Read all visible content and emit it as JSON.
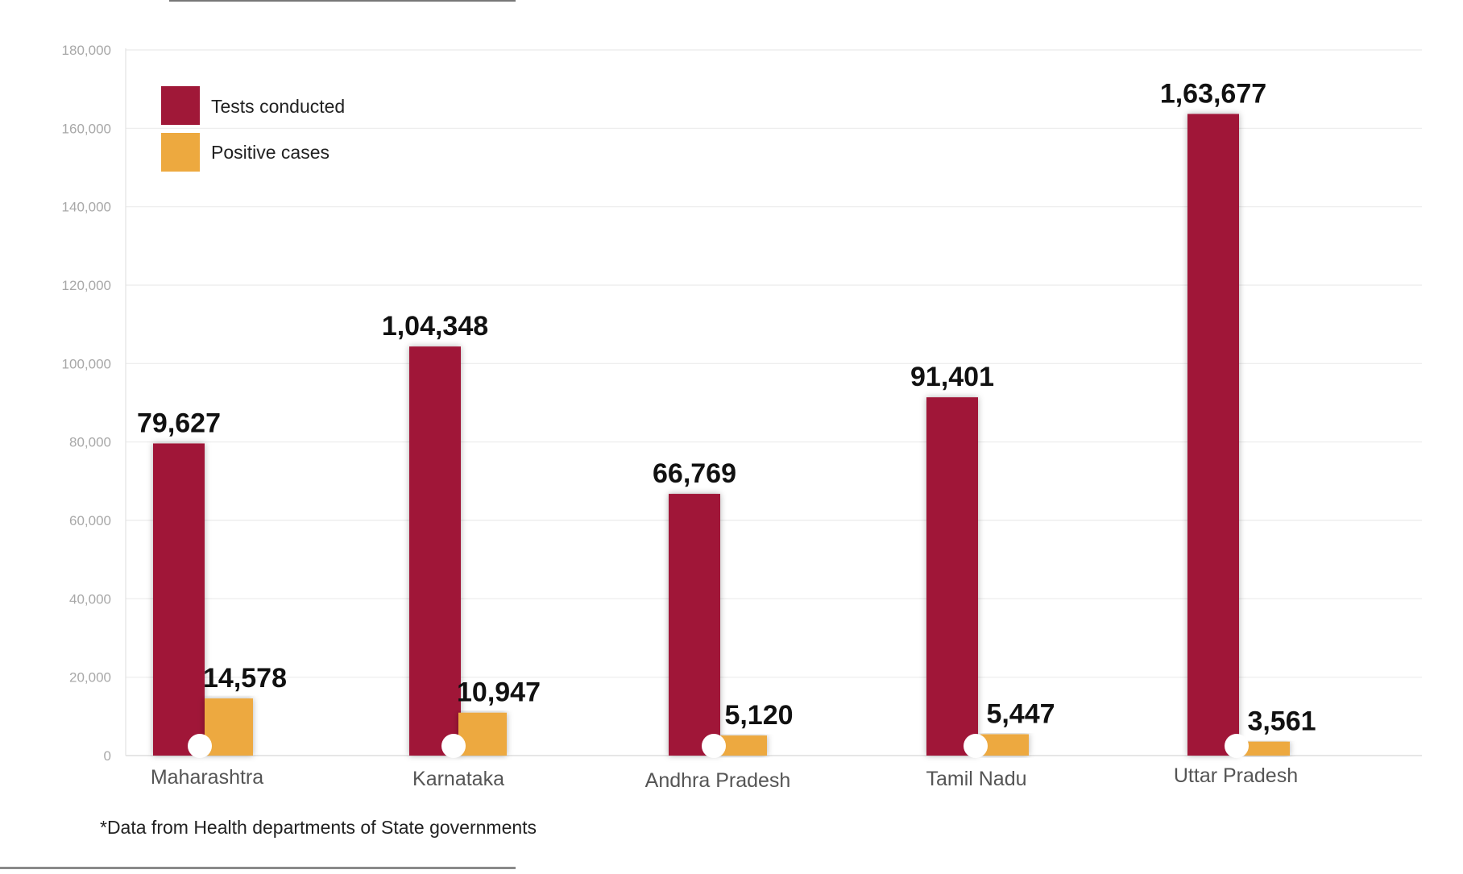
{
  "chart_data": {
    "type": "bar",
    "categories": [
      "Maharashtra",
      "Karnataka",
      "Andhra Pradesh",
      "Tamil Nadu",
      "Uttar Pradesh"
    ],
    "series": [
      {
        "name": "Tests conducted",
        "values": [
          79627,
          104348,
          66769,
          91401,
          163677
        ],
        "labels": [
          "79,627",
          "1,04,348",
          "66,769",
          "91,401",
          "1,63,677"
        ],
        "color": "#a01838"
      },
      {
        "name": "Positive cases",
        "values": [
          14578,
          10947,
          5120,
          5447,
          3561
        ],
        "labels": [
          "14,578",
          "10,947",
          "5,120",
          "5,447",
          "3,561"
        ],
        "color": "#eda93f"
      }
    ],
    "ylim": [
      0,
      180000
    ],
    "yticks": [
      0,
      20000,
      40000,
      60000,
      80000,
      100000,
      120000,
      140000,
      160000,
      180000
    ],
    "ytick_labels": [
      "0",
      "20,000",
      "40,000",
      "60,000",
      "80,000",
      "100,000",
      "120,000",
      "140,000",
      "160,000",
      "180,000"
    ],
    "grid": true,
    "legend_position": "top-left"
  },
  "footnote": "*Data from Health departments of State governments"
}
